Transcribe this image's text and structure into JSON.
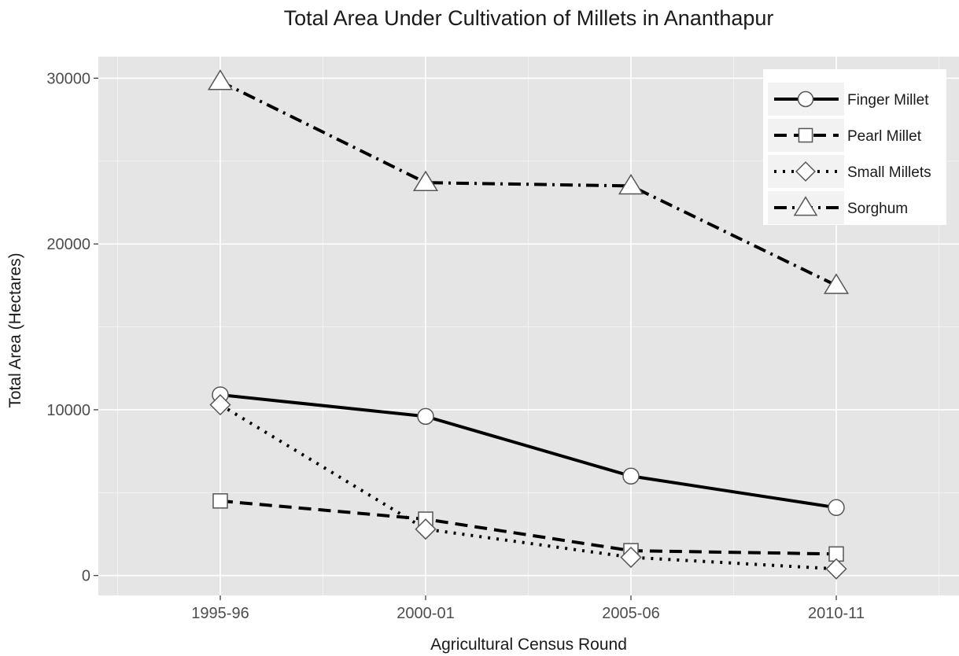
{
  "chart_data": {
    "type": "line",
    "title": "Total Area Under Cultivation of Millets in Ananthapur",
    "xlabel": "Agricultural Census Round",
    "ylabel": "Total Area (Hectares)",
    "categories": [
      "1995-96",
      "2000-01",
      "2005-06",
      "2010-11"
    ],
    "ylim": [
      -1200,
      31300
    ],
    "yticks": [
      0,
      10000,
      20000,
      30000
    ],
    "grid": true,
    "legend_position": "top-right",
    "colors": {
      "panel": "#e5e5e5",
      "grid_major": "#ffffff",
      "grid_minor": "#f2f2f2",
      "line": "#000000",
      "marker_fill": "#ffffff",
      "marker_stroke": "#555555"
    },
    "series": [
      {
        "name": "Finger Millet",
        "values": [
          10900,
          9600,
          6000,
          4100
        ],
        "marker": "circle",
        "linestyle": "solid"
      },
      {
        "name": "Pearl Millet",
        "values": [
          4500,
          3400,
          1500,
          1300
        ],
        "marker": "square",
        "linestyle": "dashed"
      },
      {
        "name": "Small Millets",
        "values": [
          10300,
          2800,
          1100,
          400
        ],
        "marker": "diamond",
        "linestyle": "dotted"
      },
      {
        "name": "Sorghum",
        "values": [
          29800,
          23700,
          23500,
          17500
        ],
        "marker": "triangle",
        "linestyle": "dotdash"
      }
    ]
  }
}
